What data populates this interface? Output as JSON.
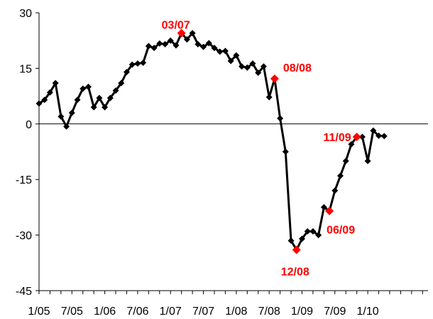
{
  "chart_data": {
    "type": "line",
    "title": "",
    "xlabel": "",
    "ylabel": "",
    "ylim": [
      -45,
      30
    ],
    "yticks": [
      30,
      15,
      0,
      -15,
      -30,
      -45
    ],
    "ytick_labels": [
      "30",
      "15",
      "0",
      "-15",
      "-30",
      "-45"
    ],
    "xlim": [
      "1/05",
      "12/10"
    ],
    "xtick_labels": [
      "1/05",
      "7/05",
      "1/06",
      "7/06",
      "1/07",
      "7/07",
      "1/08",
      "7/08",
      "1/09",
      "7/09",
      "1/10"
    ],
    "line_color": "#000000",
    "highlight_color": "#ff0000",
    "x": [
      "1/05",
      "2/05",
      "3/05",
      "4/05",
      "5/05",
      "6/05",
      "7/05",
      "8/05",
      "9/05",
      "10/05",
      "11/05",
      "12/05",
      "1/06",
      "2/06",
      "3/06",
      "4/06",
      "5/06",
      "6/06",
      "7/06",
      "8/06",
      "9/06",
      "10/06",
      "11/06",
      "12/06",
      "1/07",
      "2/07",
      "3/07",
      "4/07",
      "5/07",
      "6/07",
      "7/07",
      "8/07",
      "9/07",
      "10/07",
      "11/07",
      "12/07",
      "1/08",
      "2/08",
      "3/08",
      "4/08",
      "5/08",
      "6/08",
      "7/08",
      "8/08",
      "9/08",
      "10/08",
      "11/08",
      "12/08",
      "1/09",
      "2/09",
      "3/09",
      "4/09",
      "5/09",
      "6/09",
      "7/09",
      "8/09",
      "9/09",
      "10/09",
      "11/09",
      "12/09",
      "1/10",
      "2/10",
      "3/10",
      "4/10"
    ],
    "values": [
      5.5,
      6.5,
      8.5,
      11,
      2,
      -0.7,
      3,
      6.5,
      9.5,
      10,
      4.5,
      7,
      4.5,
      7,
      9,
      11,
      14,
      16,
      16.3,
      16.5,
      21,
      20.5,
      21.7,
      21.5,
      22.5,
      21.2,
      24.5,
      22.8,
      24.5,
      21.5,
      20.8,
      21.8,
      20.5,
      19.5,
      19.7,
      17,
      18.5,
      15.5,
      15.2,
      16.3,
      13.8,
      15.5,
      7.2,
      12.2,
      1.5,
      -7.5,
      -31.5,
      -34,
      -31,
      -29,
      -29,
      -30,
      -22.5,
      -23.5,
      -18,
      -14,
      -10,
      -5.5,
      -3.5,
      -3.5,
      -10,
      -1.8,
      -3.2,
      -3.3
    ],
    "highlights": [
      {
        "x": "3/07",
        "value": 24.5,
        "label": "03/07"
      },
      {
        "x": "8/08",
        "value": 12.2,
        "label": "08/08"
      },
      {
        "x": "12/08",
        "value": -34,
        "label": "12/08"
      },
      {
        "x": "6/09",
        "value": -23.5,
        "label": "06/09"
      },
      {
        "x": "11/09",
        "value": -3.5,
        "label": "11/09"
      }
    ]
  }
}
